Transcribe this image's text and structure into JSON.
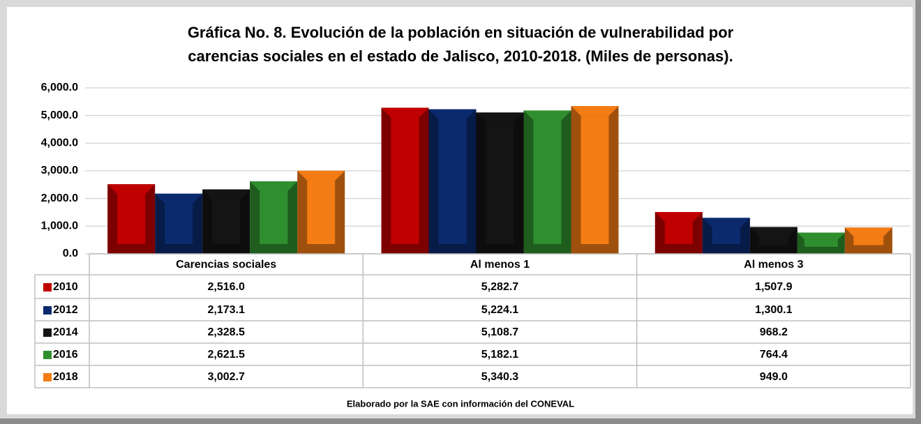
{
  "chart_data": {
    "type": "bar",
    "title": [
      "Gráfica No. 8. Evolución de la población en situación de vulnerabilidad por",
      "carencias sociales en el estado de Jalisco, 2010-2018. (Miles de personas)."
    ],
    "categories": [
      "Carencias sociales",
      "Al menos 1",
      "Al menos 3"
    ],
    "series": [
      {
        "name": "2010",
        "color": "#c00000",
        "values": [
          2516.0,
          5282.7,
          1507.9
        ],
        "value_labels": [
          "2,516.0",
          "5,282.7",
          "1,507.9"
        ]
      },
      {
        "name": "2012",
        "color": "#0b2a6e",
        "values": [
          2173.1,
          5224.1,
          1300.1
        ],
        "value_labels": [
          "2,173.1",
          "5,224.1",
          "1,300.1"
        ]
      },
      {
        "name": "2014",
        "color": "#141414",
        "values": [
          2328.5,
          5108.7,
          968.2
        ],
        "value_labels": [
          "2,328.5",
          "5,108.7",
          "968.2"
        ]
      },
      {
        "name": "2016",
        "color": "#2f8f2f",
        "values": [
          2621.5,
          5182.1,
          764.4
        ],
        "value_labels": [
          "2,621.5",
          "5,182.1",
          "764.4"
        ]
      },
      {
        "name": "2018",
        "color": "#f47c14",
        "values": [
          3002.7,
          5340.3,
          949.0
        ],
        "value_labels": [
          "3,002.7",
          "5,340.3",
          "949.0"
        ]
      }
    ],
    "ylim": [
      0,
      6000
    ],
    "yticks": [
      {
        "value": 0,
        "label": "0.0"
      },
      {
        "value": 1000,
        "label": "1,000.0"
      },
      {
        "value": 2000,
        "label": "2,000.0"
      },
      {
        "value": 3000,
        "label": "3,000.0"
      },
      {
        "value": 4000,
        "label": "4,000.0"
      },
      {
        "value": 5000,
        "label": "5,000.0"
      },
      {
        "value": 6000,
        "label": "6,000.0"
      }
    ],
    "grid": true,
    "note": "Elaborado por la SAE con información del CONEVAL"
  }
}
